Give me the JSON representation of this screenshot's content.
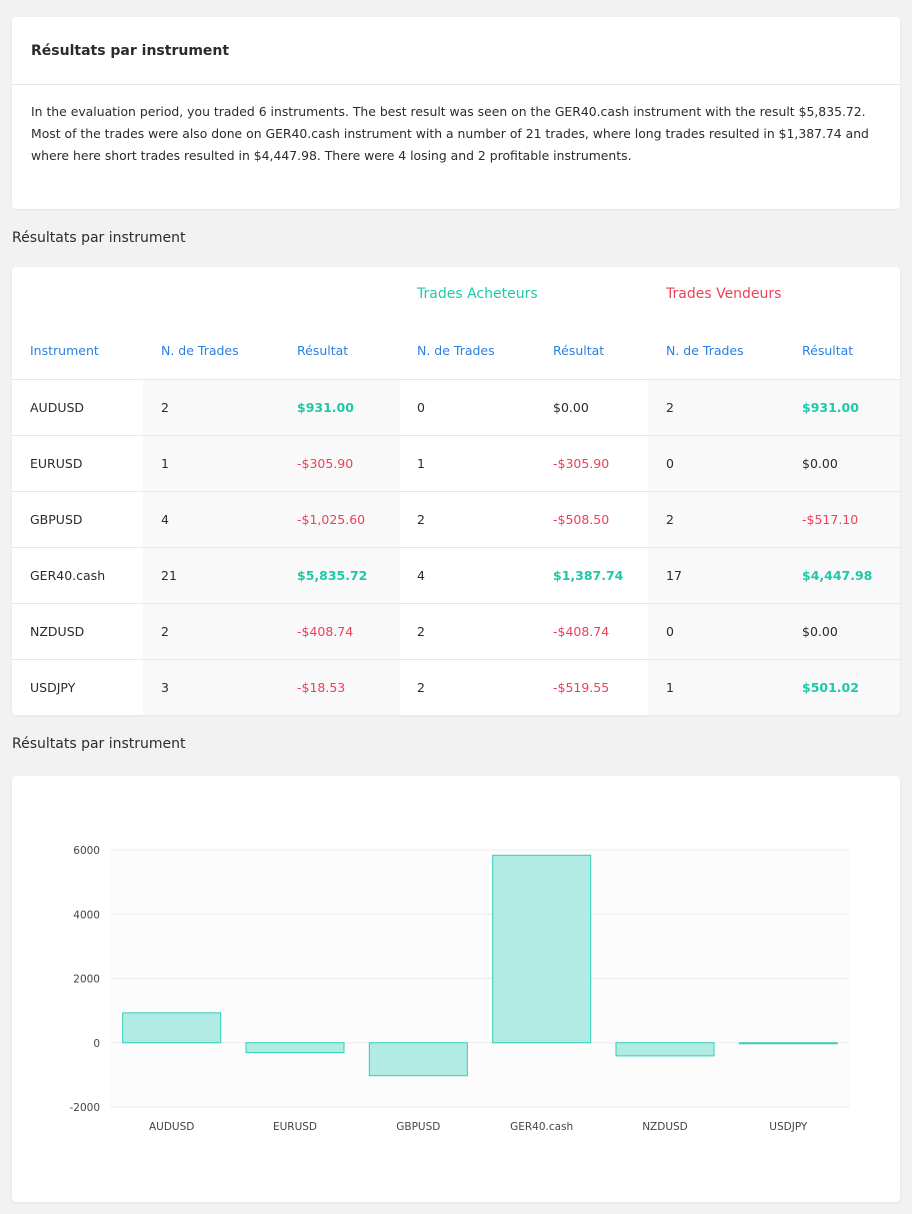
{
  "summary": {
    "title": "Résultats par instrument",
    "lines": [
      "In the evaluation period, you traded 6 instruments. The best result was seen on the GER40.cash instrument with the result $5,835.72.",
      "Most of the trades were also done on GER40.cash instrument with a number of 21 trades, where long trades resulted in $1,387.74 and",
      "where here short trades resulted in $4,447.98. There were 4 losing and 2 profitable instruments."
    ]
  },
  "table_section_title": "Résultats par instrument",
  "chart_section_title": "Résultats par instrument",
  "table": {
    "group_long": "Trades Acheteurs",
    "group_short": "Trades Vendeurs",
    "headers": [
      "Instrument",
      "N. de Trades",
      "Résultat",
      "N. de Trades",
      "Résultat",
      "N. de Trades",
      "Résultat"
    ],
    "rows": [
      {
        "instrument": "AUDUSD",
        "trades": "2",
        "result": "$931.00",
        "long_trades": "0",
        "long_result": "$0.00",
        "short_trades": "2",
        "short_result": "$931.00"
      },
      {
        "instrument": "EURUSD",
        "trades": "1",
        "result": "-$305.90",
        "long_trades": "1",
        "long_result": "-$305.90",
        "short_trades": "0",
        "short_result": "$0.00"
      },
      {
        "instrument": "GBPUSD",
        "trades": "4",
        "result": "-$1,025.60",
        "long_trades": "2",
        "long_result": "-$508.50",
        "short_trades": "2",
        "short_result": "-$517.10"
      },
      {
        "instrument": "GER40.cash",
        "trades": "21",
        "result": "$5,835.72",
        "long_trades": "4",
        "long_result": "$1,387.74",
        "short_trades": "17",
        "short_result": "$4,447.98"
      },
      {
        "instrument": "NZDUSD",
        "trades": "2",
        "result": "-$408.74",
        "long_trades": "2",
        "long_result": "-$408.74",
        "short_trades": "0",
        "short_result": "$0.00"
      },
      {
        "instrument": "USDJPY",
        "trades": "3",
        "result": "-$18.53",
        "long_trades": "2",
        "long_result": "-$519.55",
        "short_trades": "1",
        "short_result": "$501.02"
      }
    ]
  },
  "colors": {
    "header_blue": "#2a7fe0",
    "positive": "#1ec9a8",
    "negative": "#f0405a",
    "bar_fill": "#b0ece4",
    "bar_stroke": "#2fcfb7"
  },
  "chart_data": {
    "type": "bar",
    "categories": [
      "AUDUSD",
      "EURUSD",
      "GBPUSD",
      "GER40.cash",
      "NZDUSD",
      "USDJPY"
    ],
    "values": [
      931.0,
      -305.9,
      -1025.6,
      5835.72,
      -408.74,
      -18.53
    ],
    "yticks": [
      6000,
      4000,
      2000,
      0,
      -2000
    ],
    "ylim": [
      -2000,
      6000
    ],
    "title": "",
    "xlabel": "",
    "ylabel": "",
    "grid": true,
    "legend": "none"
  }
}
